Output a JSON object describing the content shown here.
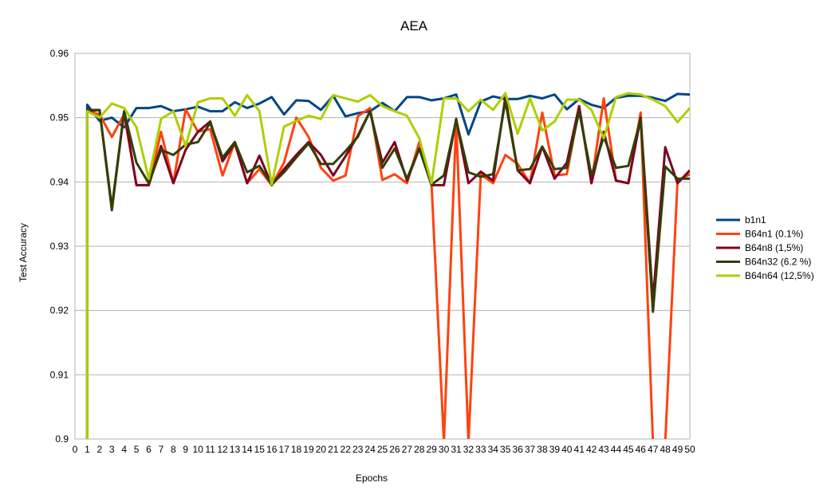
{
  "chart_data": {
    "type": "line",
    "title": "AEA",
    "xlabel": "Epochs",
    "ylabel": "Test Accuracy",
    "xlim": [
      0,
      50
    ],
    "ylim": [
      0.9,
      0.96
    ],
    "x_ticks": [
      "0",
      "1",
      "2",
      "3",
      "4",
      "5",
      "6",
      "7",
      "8",
      "9",
      "10",
      "11",
      "12",
      "13",
      "14",
      "15",
      "16",
      "17",
      "18",
      "19",
      "20",
      "21",
      "22",
      "23",
      "24",
      "25",
      "26",
      "27",
      "28",
      "29",
      "30",
      "31",
      "32",
      "33",
      "34",
      "35",
      "36",
      "37",
      "38",
      "39",
      "40",
      "41",
      "42",
      "43",
      "44",
      "45",
      "46",
      "47",
      "48",
      "49",
      "50"
    ],
    "y_ticks": [
      "0.9",
      "0.91",
      "0.92",
      "0.93",
      "0.94",
      "0.95",
      "0.96"
    ],
    "grid": true,
    "legend_position": "right",
    "x": [
      1,
      2,
      3,
      4,
      5,
      6,
      7,
      8,
      9,
      10,
      11,
      12,
      13,
      14,
      15,
      16,
      17,
      18,
      19,
      20,
      21,
      22,
      23,
      24,
      25,
      26,
      27,
      28,
      29,
      30,
      31,
      32,
      33,
      34,
      35,
      36,
      37,
      38,
      39,
      40,
      41,
      42,
      43,
      44,
      45,
      46,
      47,
      48,
      49,
      50
    ],
    "series": [
      {
        "name": "b1n1",
        "color": "#004586",
        "values": [
          0.952,
          0.9495,
          0.95,
          0.9485,
          0.9515,
          0.9515,
          0.9518,
          0.951,
          0.9513,
          0.9517,
          0.951,
          0.951,
          0.9524,
          0.9515,
          0.9522,
          0.9532,
          0.9505,
          0.9527,
          0.9526,
          0.9512,
          0.9534,
          0.9502,
          0.9507,
          0.951,
          0.9523,
          0.951,
          0.9532,
          0.9532,
          0.9527,
          0.953,
          0.9536,
          0.9474,
          0.9525,
          0.9533,
          0.9529,
          0.9529,
          0.9534,
          0.953,
          0.9536,
          0.9513,
          0.9529,
          0.952,
          0.9515,
          0.9531,
          0.9534,
          0.9534,
          0.9531,
          0.9526,
          0.9537,
          0.9536
        ]
      },
      {
        "name": "B64n1 (0.1%)",
        "color": "#ff420e",
        "values": [
          0.951,
          0.9505,
          0.947,
          0.9505,
          0.9395,
          0.9395,
          0.9478,
          0.9398,
          0.9513,
          0.9478,
          0.9482,
          0.941,
          0.9462,
          0.9398,
          0.942,
          0.9395,
          0.943,
          0.95,
          0.947,
          0.9422,
          0.9402,
          0.941,
          0.9502,
          0.9515,
          0.9403,
          0.9412,
          0.9398,
          0.9462,
          0.9395,
          0.8995,
          0.9495,
          0.8995,
          0.9412,
          0.9398,
          0.9442,
          0.9428,
          0.9398,
          0.9508,
          0.941,
          0.9412,
          0.9515,
          0.9398,
          0.953,
          0.9402,
          0.9398,
          0.9508,
          0.8995,
          0.8995,
          0.9402,
          0.9412
        ]
      },
      {
        "name": "B64n8 (1,5%)",
        "color": "#7e0021",
        "values": [
          0.951,
          0.9512,
          0.936,
          0.951,
          0.9395,
          0.9395,
          0.9456,
          0.9398,
          0.945,
          0.9478,
          0.9494,
          0.9432,
          0.946,
          0.9398,
          0.9441,
          0.9395,
          0.942,
          0.9442,
          0.9462,
          0.9442,
          0.941,
          0.944,
          0.9472,
          0.951,
          0.943,
          0.9462,
          0.9402,
          0.9452,
          0.9395,
          0.9395,
          0.9498,
          0.9398,
          0.9416,
          0.9402,
          0.9532,
          0.9418,
          0.9398,
          0.9455,
          0.9405,
          0.943,
          0.9518,
          0.9398,
          0.9478,
          0.9402,
          0.9398,
          0.95,
          0.9215,
          0.9454,
          0.9398,
          0.9418
        ]
      },
      {
        "name": "B64n32 (6.2 %)",
        "color": "#314004",
        "values": [
          0.9512,
          0.9512,
          0.9356,
          0.951,
          0.943,
          0.9398,
          0.945,
          0.9442,
          0.9458,
          0.9462,
          0.9492,
          0.9438,
          0.9462,
          0.9415,
          0.9425,
          0.9396,
          0.9415,
          0.9438,
          0.946,
          0.9428,
          0.9428,
          0.9448,
          0.947,
          0.951,
          0.9422,
          0.9452,
          0.9405,
          0.9452,
          0.9396,
          0.941,
          0.9496,
          0.9415,
          0.9408,
          0.9412,
          0.9526,
          0.9418,
          0.942,
          0.9455,
          0.942,
          0.9422,
          0.951,
          0.941,
          0.947,
          0.9422,
          0.9425,
          0.9498,
          0.9198,
          0.9424,
          0.9405,
          0.9405
        ]
      },
      {
        "name": "B64n64 (12,5%)",
        "color": "#aecf00",
        "values": [
          0.951,
          0.95,
          0.9522,
          0.9515,
          0.9485,
          0.9405,
          0.9498,
          0.951,
          0.9456,
          0.9524,
          0.953,
          0.953,
          0.9503,
          0.9535,
          0.951,
          0.9396,
          0.9486,
          0.9495,
          0.9503,
          0.9498,
          0.9535,
          0.953,
          0.9525,
          0.9535,
          0.9518,
          0.951,
          0.9503,
          0.9468,
          0.9398,
          0.953,
          0.953,
          0.951,
          0.9528,
          0.9512,
          0.9538,
          0.9475,
          0.953,
          0.948,
          0.9494,
          0.9528,
          0.9528,
          0.9512,
          0.9468,
          0.9532,
          0.9538,
          0.9536,
          0.9528,
          0.9518,
          0.9493,
          0.9515
        ]
      }
    ]
  }
}
